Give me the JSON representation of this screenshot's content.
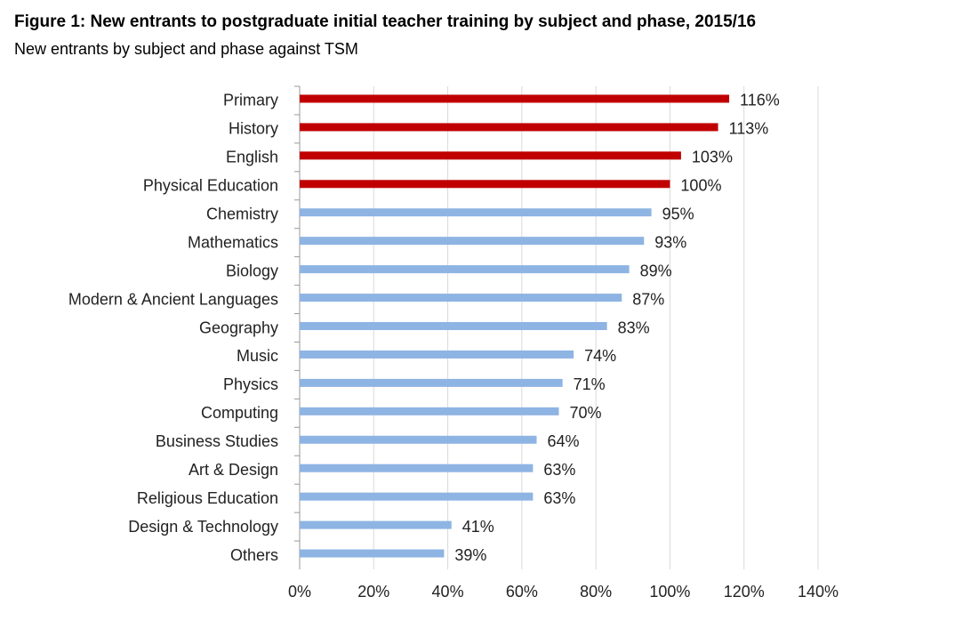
{
  "chart_data": {
    "type": "hbar",
    "title": "Figure 1: New entrants to postgraduate initial teacher training by subject and phase, 2015/16",
    "subtitle": "New entrants by subject and phase against TSM",
    "categories": [
      "Primary",
      "History",
      "English",
      "Physical Education",
      "Chemistry",
      "Mathematics",
      "Biology",
      "Modern & Ancient Languages",
      "Geography",
      "Music",
      "Physics",
      "Computing",
      "Business Studies",
      "Art & Design",
      "Religious Education",
      "Design & Technology",
      "Others"
    ],
    "values": [
      116,
      113,
      103,
      100,
      95,
      93,
      89,
      87,
      83,
      74,
      71,
      70,
      64,
      63,
      63,
      41,
      39
    ],
    "value_labels": [
      "116%",
      "113%",
      "103%",
      "100%",
      "95%",
      "93%",
      "89%",
      "87%",
      "83%",
      "74%",
      "71%",
      "70%",
      "64%",
      "63%",
      "63%",
      "41%",
      "39%"
    ],
    "colors": [
      "#c00000",
      "#c00000",
      "#c00000",
      "#c00000",
      "#8eb4e3",
      "#8eb4e3",
      "#8eb4e3",
      "#8eb4e3",
      "#8eb4e3",
      "#8eb4e3",
      "#8eb4e3",
      "#8eb4e3",
      "#8eb4e3",
      "#8eb4e3",
      "#8eb4e3",
      "#8eb4e3",
      "#8eb4e3"
    ],
    "xlim": [
      0,
      140
    ],
    "xticks": [
      {
        "value": 0,
        "label": "0%"
      },
      {
        "value": 20,
        "label": "20%"
      },
      {
        "value": 40,
        "label": "40%"
      },
      {
        "value": 60,
        "label": "60%"
      },
      {
        "value": 80,
        "label": "80%"
      },
      {
        "value": 100,
        "label": "100%"
      },
      {
        "value": 120,
        "label": "120%"
      },
      {
        "value": 140,
        "label": "140%"
      }
    ],
    "grid": true
  }
}
